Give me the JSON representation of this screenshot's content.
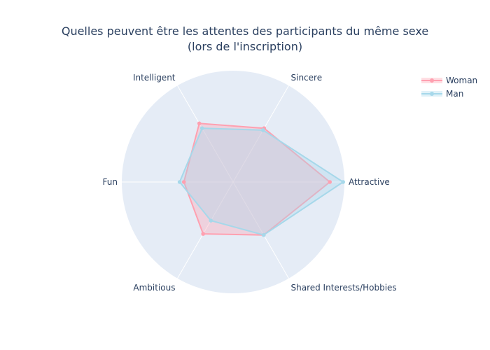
{
  "chart_data": {
    "type": "radar",
    "title_line1": "Quelles peuvent être les attentes des participants du même sexe",
    "title_line2": "(lors de l'inscription)",
    "axes": [
      "Sincere",
      "Intelligent",
      "Fun",
      "Ambitious",
      "Shared Interests/Hobbies",
      "Attractive"
    ],
    "range": [
      0,
      26
    ],
    "grid": true,
    "legend_position": "top-right",
    "series": [
      {
        "name": "Woman",
        "color": "#ffa0b0",
        "fill": "rgba(255,160,176,0.35)",
        "values": [
          14.5,
          15.8,
          11.5,
          14.0,
          14.3,
          22.6
        ]
      },
      {
        "name": "Man",
        "color": "#a6d8ea",
        "fill": "rgba(166,216,234,0.35)",
        "values": [
          14.0,
          14.5,
          12.5,
          10.4,
          14.3,
          25.7
        ]
      }
    ]
  }
}
